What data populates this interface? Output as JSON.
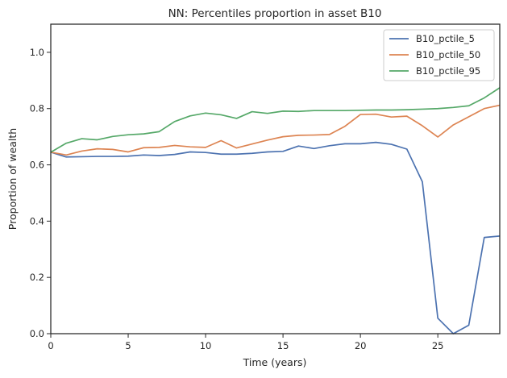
{
  "chart_data": {
    "type": "line",
    "title": "NN: Percentiles proportion in asset B10",
    "xlabel": "Time (years)",
    "ylabel": "Proportion of wealth",
    "xlim": [
      0,
      29
    ],
    "ylim": [
      0,
      1.1
    ],
    "xticks": [
      0,
      5,
      10,
      15,
      20,
      25
    ],
    "yticks": [
      0.0,
      0.2,
      0.4,
      0.6,
      0.8,
      1.0
    ],
    "xtick_labels": [
      "0",
      "5",
      "10",
      "15",
      "20",
      "25"
    ],
    "ytick_labels": [
      "0.0",
      "0.2",
      "0.4",
      "0.6",
      "0.8",
      "1.0"
    ],
    "grid": false,
    "legend_position": "top-right",
    "x": [
      0,
      1,
      2,
      3,
      4,
      5,
      6,
      7,
      8,
      9,
      10,
      11,
      12,
      13,
      14,
      15,
      16,
      17,
      18,
      19,
      20,
      21,
      22,
      23,
      24,
      25,
      26,
      27,
      28,
      29
    ],
    "series": [
      {
        "name": "B10_pctile_5",
        "color": "#4c72b0",
        "values": [
          0.645,
          0.628,
          0.629,
          0.63,
          0.63,
          0.631,
          0.635,
          0.633,
          0.637,
          0.646,
          0.644,
          0.638,
          0.638,
          0.641,
          0.646,
          0.648,
          0.667,
          0.658,
          0.668,
          0.675,
          0.675,
          0.68,
          0.673,
          0.656,
          0.54,
          0.055,
          0.0,
          0.03,
          0.342,
          0.347
        ]
      },
      {
        "name": "B10_pctile_50",
        "color": "#dd8452",
        "values": [
          0.645,
          0.635,
          0.649,
          0.657,
          0.655,
          0.646,
          0.661,
          0.662,
          0.669,
          0.664,
          0.662,
          0.686,
          0.66,
          0.674,
          0.688,
          0.7,
          0.705,
          0.706,
          0.708,
          0.737,
          0.779,
          0.78,
          0.77,
          0.773,
          0.739,
          0.699,
          0.742,
          0.771,
          0.8,
          0.812
        ]
      },
      {
        "name": "B10_pctile_95",
        "color": "#55a868",
        "values": [
          0.645,
          0.677,
          0.693,
          0.689,
          0.701,
          0.707,
          0.71,
          0.718,
          0.754,
          0.774,
          0.784,
          0.778,
          0.765,
          0.789,
          0.783,
          0.791,
          0.79,
          0.793,
          0.793,
          0.793,
          0.794,
          0.795,
          0.795,
          0.796,
          0.798,
          0.8,
          0.804,
          0.81,
          0.838,
          0.874
        ]
      }
    ]
  }
}
